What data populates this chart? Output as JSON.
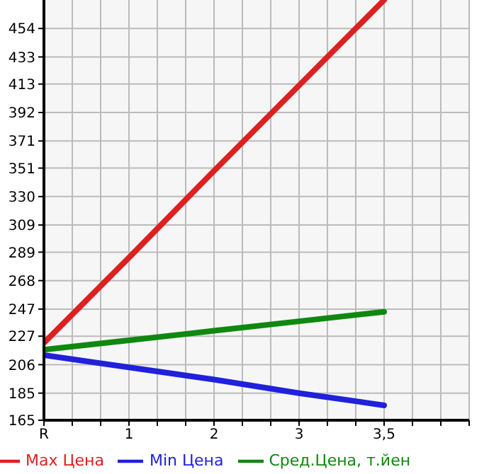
{
  "chart_data": {
    "type": "line",
    "categories": [
      "R",
      "1",
      "2",
      "3",
      "3,5",
      null
    ],
    "series": [
      {
        "name": "Max Цена",
        "color": "#dd2020",
        "values": [
          222,
          285,
          349,
          412,
          475,
          null
        ]
      },
      {
        "name": "Min Цена",
        "color": "#2020dd",
        "values": [
          213,
          204,
          195,
          185,
          176,
          null
        ]
      },
      {
        "name": "Сред.Цена, т.йен",
        "color": "#108810",
        "values": [
          217,
          224,
          231,
          238,
          245,
          null
        ]
      }
    ],
    "ylim": [
      165,
      475
    ],
    "yticks": [
      165,
      185,
      206,
      227,
      247,
      268,
      289,
      309,
      330,
      351,
      371,
      392,
      413,
      433,
      454
    ],
    "grid": true,
    "legend": "bottom",
    "marker": "none",
    "line_style": "solid"
  }
}
